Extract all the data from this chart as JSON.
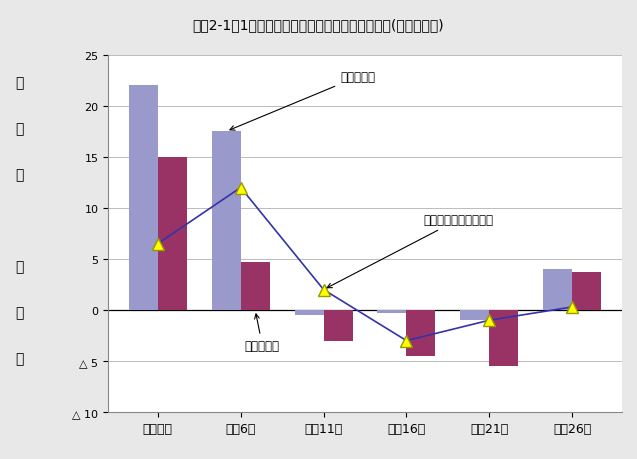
{
  "title": "図袅2-1　1か月平均実収入の対前回増加率の推移(勤労者世帯)",
  "categories": [
    "平成元年",
    "平成6年",
    "平成11年",
    "平成16年",
    "平成21年",
    "平成26年"
  ],
  "nominal_rate": [
    22.0,
    17.5,
    -0.5,
    -0.3,
    -1.0,
    4.0
  ],
  "real_rate": [
    15.0,
    4.7,
    -3.0,
    -4.5,
    -5.5,
    3.7
  ],
  "cpi_rate": [
    6.5,
    12.0,
    2.0,
    -3.0,
    -1.0,
    0.3
  ],
  "bar_color_nominal": "#9999cc",
  "bar_color_real": "#993366",
  "line_color": "#3333aa",
  "marker_color": "#ffff00",
  "marker_edge_color": "#999900",
  "ylabel_chars": [
    "増",
    "加",
    "率",
    "",
    "（",
    "％",
    "）"
  ],
  "ylim_min": -10,
  "ylim_max": 25,
  "yticks": [
    -10,
    -5,
    0,
    5,
    10,
    15,
    20,
    25
  ],
  "ytick_labels": [
    "△ 10",
    "△ 5",
    "0",
    "5",
    "10",
    "15",
    "20",
    "25"
  ],
  "annotation_nominal": "名目増加率",
  "annotation_real": "実質増加率",
  "annotation_cpi": "消費者物価指数上昇率",
  "bar_width": 0.35,
  "background_color": "#e8e8e8",
  "plot_bg_color": "#ffffff",
  "spine_color": "#888888",
  "grid_color": "#bbbbbb"
}
